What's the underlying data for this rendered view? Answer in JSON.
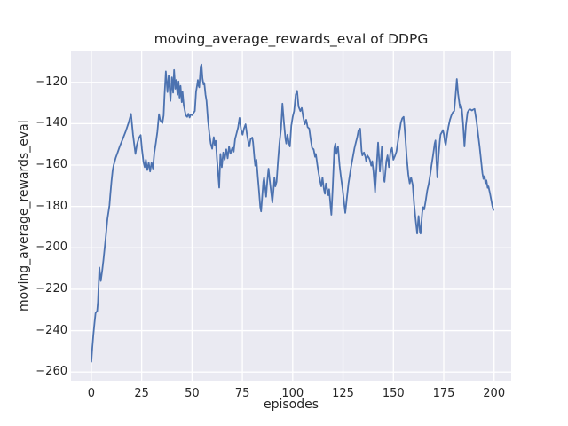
{
  "figure": {
    "title": "moving_average_rewards_eval of DDPG",
    "background_color": "#ffffff"
  },
  "chart_data": {
    "type": "line",
    "title": "moving_average_rewards_eval of DDPG",
    "xlabel": "episodes",
    "ylabel": "moving_average_rewards_eval",
    "x_ticks": [
      0,
      25,
      50,
      75,
      100,
      125,
      150,
      175,
      200
    ],
    "x_tick_labels": [
      "0",
      "25",
      "50",
      "75",
      "100",
      "125",
      "150",
      "175",
      "200"
    ],
    "y_ticks": [
      -260,
      -240,
      -220,
      -200,
      -180,
      -160,
      -140,
      -120
    ],
    "y_tick_labels": [
      "−260",
      "−240",
      "−220",
      "−200",
      "−180",
      "−160",
      "−140",
      "−120"
    ],
    "xlim": [
      -10.1,
      208.5
    ],
    "ylim": [
      -264.2,
      -105.1
    ],
    "grid": true,
    "legend_position": "none",
    "style": {
      "axes_background": "#eaeaf2",
      "grid_color": "#ffffff",
      "line_color": "#4c72b0",
      "text_color": "#262626",
      "line_width": 1.8,
      "grid_width": 1.3
    },
    "series": [
      {
        "name": "moving_average_rewards_eval",
        "x": [
          0,
          0.5,
          1,
          1.6,
          2.1,
          2.9,
          3.3,
          4,
          4.7,
          5.4,
          6,
          7,
          8,
          9,
          9.5,
          10,
          10.6,
          11.2,
          12.1,
          12.8,
          14.1,
          15.6,
          17,
          18.5,
          19.7,
          20.7,
          21.3,
          21.9,
          22.6,
          23.6,
          24.5,
          25.1,
          25.9,
          26.5,
          27.1,
          27.8,
          28.5,
          29.2,
          29.9,
          30.6,
          31.3,
          32,
          32.8,
          33.6,
          34.1,
          34.6,
          35.3,
          35.9,
          36.3,
          37,
          37.8,
          38.4,
          39.3,
          40,
          40.6,
          41.1,
          41.7,
          42.2,
          42.8,
          43.3,
          43.8,
          44.3,
          44.9,
          45.3,
          45.9,
          46.9,
          47.6,
          48.2,
          48.8,
          49.4,
          50.2,
          50.9,
          51.4,
          52,
          52.6,
          52.9,
          53.3,
          53.6,
          54.3,
          54.7,
          55.2,
          55.7,
          56.1,
          56.7,
          57.2,
          57.9,
          58.6,
          59.3,
          60,
          60.8,
          61.3,
          61.8,
          62.4,
          63,
          63.5,
          64.1,
          64.8,
          65.5,
          66.2,
          67,
          67.7,
          68.4,
          69.1,
          70,
          70.7,
          71.4,
          72.1,
          72.9,
          73.6,
          74.4,
          75.1,
          75.8,
          76.6,
          77.3,
          78,
          78.5,
          79.1,
          79.9,
          80.3,
          81,
          81.4,
          82,
          82.7,
          83.2,
          83.9,
          84.3,
          85,
          85.4,
          85.8,
          86.4,
          86.8,
          87.4,
          88,
          88.6,
          89.2,
          89.9,
          90.5,
          90.9,
          91.4,
          92,
          92.7,
          93.4,
          94.2,
          94.9,
          95.6,
          96.4,
          96.8,
          97.4,
          98,
          98.6,
          99.3,
          100,
          100.7,
          101.5,
          102.2,
          102.9,
          103.8,
          104.5,
          105.2,
          106,
          106.7,
          107.4,
          108.2,
          108.9,
          109.6,
          110.4,
          111.1,
          111.5,
          112.3,
          113,
          113.7,
          114.2,
          114.8,
          115.5,
          116,
          116.5,
          117.1,
          117.7,
          118.1,
          118.9,
          119.2,
          119.9,
          120.7,
          121.2,
          121.7,
          122.5,
          123.3,
          123.9,
          124.8,
          125.6,
          126.1,
          126.9,
          127.7,
          128.5,
          129.2,
          129.9,
          130.7,
          131.4,
          132,
          132.7,
          133.5,
          134.2,
          134.6,
          135.4,
          136.1,
          136.5,
          137.1,
          137.9,
          138.3,
          139,
          139.5,
          140.1,
          140.9,
          142.4,
          143.3,
          144.3,
          145,
          145.6,
          146.5,
          147.1,
          147.8,
          148.5,
          149.3,
          150,
          150.8,
          151.5,
          152.5,
          153.7,
          154.4,
          155.1,
          155.9,
          156.6,
          157.4,
          158.1,
          158.8,
          159.6,
          160.3,
          161,
          161.8,
          162.5,
          163.2,
          163.5,
          164.3,
          164.7,
          165.3,
          166,
          166.8,
          167.5,
          168.3,
          169,
          169.7,
          170.5,
          170.9,
          171.5,
          171.8,
          172.4,
          173,
          173.4,
          174.2,
          174.6,
          175.1,
          175.6,
          176,
          176.7,
          177.3,
          178.1,
          178.8,
          179.5,
          180.2,
          180.9,
          181.5,
          182.1,
          182.7,
          183.1,
          183.5,
          184,
          184.6,
          185.3,
          186,
          186.8,
          187.5,
          188.2,
          189,
          189.8,
          190.3,
          191.3,
          192,
          192.8,
          193.5,
          194.2,
          194.7,
          195.3,
          195.7,
          196.2,
          196.8,
          197.2,
          198,
          199.1,
          199.7
        ],
        "y": [
          -255,
          -248,
          -242,
          -236,
          -231.5,
          -230.5,
          -226,
          -209.5,
          -216,
          -211,
          -206,
          -196.5,
          -186,
          -179.5,
          -173.5,
          -168,
          -162.5,
          -159.6,
          -156.5,
          -154.6,
          -151,
          -147.4,
          -143.9,
          -139.6,
          -135.3,
          -145.3,
          -150,
          -154.6,
          -150.3,
          -146.9,
          -145.5,
          -152,
          -158.5,
          -161,
          -157.4,
          -162.4,
          -158.8,
          -163.1,
          -158.8,
          -161.7,
          -153.9,
          -149.6,
          -143.9,
          -135.4,
          -137.8,
          -139,
          -139.7,
          -136,
          -127,
          -114.7,
          -124.7,
          -116.8,
          -129,
          -117.6,
          -125,
          -114,
          -123.1,
          -118.9,
          -126,
          -119.6,
          -127.4,
          -121.7,
          -129.6,
          -124.6,
          -131,
          -136,
          -136.7,
          -135.2,
          -137,
          -135.5,
          -135.9,
          -134.6,
          -133.9,
          -124.6,
          -121,
          -118.9,
          -121.7,
          -122.4,
          -112.4,
          -111.4,
          -118.1,
          -121,
          -120.3,
          -126,
          -128.9,
          -138.1,
          -144.6,
          -149.6,
          -152.1,
          -146.5,
          -150.3,
          -148.3,
          -157,
          -164.5,
          -170.9,
          -154.6,
          -161,
          -153.9,
          -157.4,
          -152.4,
          -156.7,
          -151,
          -154.5,
          -151.7,
          -153.5,
          -147.4,
          -144.8,
          -141.7,
          -137.2,
          -143.1,
          -145.3,
          -142.4,
          -140.3,
          -145.3,
          -148.9,
          -151,
          -147.4,
          -146.7,
          -148.9,
          -156.7,
          -160.3,
          -157.4,
          -166,
          -171.7,
          -180.3,
          -182.4,
          -173.5,
          -168.1,
          -166,
          -171.7,
          -175.3,
          -167.5,
          -161.7,
          -167.4,
          -172.4,
          -178.1,
          -171.7,
          -166,
          -170.3,
          -168.1,
          -158.1,
          -149.6,
          -142.4,
          -130.3,
          -138.9,
          -147.4,
          -149.6,
          -145.3,
          -148.9,
          -151,
          -141,
          -136.7,
          -133.9,
          -126,
          -124.1,
          -131.7,
          -133.9,
          -132.4,
          -136.7,
          -140.3,
          -138.1,
          -141.7,
          -142.4,
          -147.4,
          -151.7,
          -152.4,
          -156,
          -154.6,
          -160.3,
          -164.6,
          -168.1,
          -170.3,
          -166,
          -171.7,
          -173.9,
          -168.9,
          -171.5,
          -174.6,
          -171.7,
          -181,
          -184,
          -170.3,
          -151.7,
          -149.6,
          -154.6,
          -151,
          -160.3,
          -165.3,
          -171.7,
          -178.9,
          -183.1,
          -175.9,
          -168.9,
          -163.9,
          -159.6,
          -156,
          -151.7,
          -148.9,
          -146.7,
          -143.1,
          -142.4,
          -153.1,
          -155.3,
          -153.9,
          -156,
          -158.1,
          -155.3,
          -156.5,
          -157.4,
          -160.3,
          -158.1,
          -163,
          -173.1,
          -149.1,
          -163.1,
          -151,
          -166,
          -168.1,
          -158.1,
          -155.3,
          -161,
          -153.9,
          -151.7,
          -157.4,
          -155.5,
          -153.5,
          -147,
          -139.6,
          -137.4,
          -136.7,
          -146,
          -156,
          -164.6,
          -168.9,
          -166,
          -169.6,
          -178.9,
          -186,
          -193.1,
          -184.6,
          -192.4,
          -193.1,
          -183.1,
          -180.3,
          -181.5,
          -177.5,
          -172.3,
          -169.3,
          -164.6,
          -159.6,
          -155.3,
          -149.6,
          -148.1,
          -160,
          -166,
          -156,
          -148.9,
          -145.3,
          -143.9,
          -143.1,
          -145.3,
          -148.9,
          -150.3,
          -145.3,
          -141.7,
          -138.1,
          -136,
          -134.6,
          -133.9,
          -126,
          -118.4,
          -125.3,
          -129.6,
          -132.4,
          -130.8,
          -133,
          -140,
          -151,
          -141,
          -134.6,
          -133.4,
          -133.1,
          -133.6,
          -133.1,
          -132.9,
          -138.9,
          -144.6,
          -151,
          -157.4,
          -163.9,
          -166.7,
          -165.3,
          -168.9,
          -167.4,
          -171,
          -170.3,
          -173.9,
          -179.6,
          -181.7
        ]
      }
    ]
  }
}
